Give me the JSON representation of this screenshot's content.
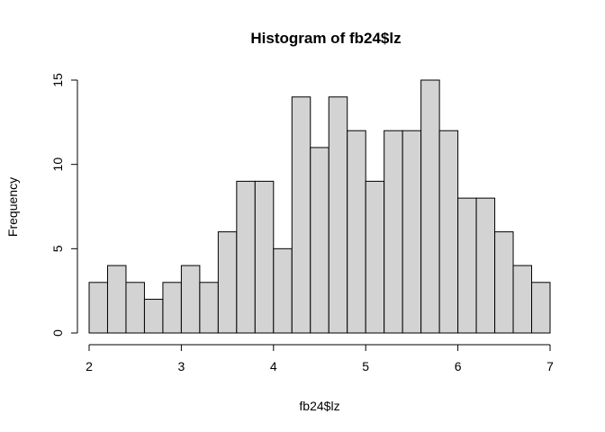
{
  "chart_data": {
    "type": "bar",
    "title": "Histogram of fb24$lz",
    "xlabel": "fb24$lz",
    "ylabel": "Frequency",
    "bin_width": 0.2,
    "bin_edges": [
      2.0,
      2.2,
      2.4,
      2.6,
      2.8,
      3.0,
      3.2,
      3.4,
      3.6,
      3.8,
      4.0,
      4.2,
      4.4,
      4.6,
      4.8,
      5.0,
      5.2,
      5.4,
      5.6,
      5.8,
      6.0,
      6.2,
      6.4,
      6.6,
      6.8,
      7.0
    ],
    "values": [
      3,
      4,
      3,
      2,
      3,
      4,
      3,
      6,
      9,
      9,
      5,
      14,
      11,
      14,
      12,
      9,
      12,
      12,
      15,
      12,
      8,
      8,
      6,
      4,
      3
    ],
    "xlim": [
      2,
      7
    ],
    "ylim": [
      0,
      15
    ],
    "x_ticks": [
      2,
      3,
      4,
      5,
      6,
      7
    ],
    "y_ticks": [
      0,
      5,
      10,
      15
    ],
    "grid": false,
    "bar_color": "#d3d3d3",
    "border_color": "#000000"
  }
}
